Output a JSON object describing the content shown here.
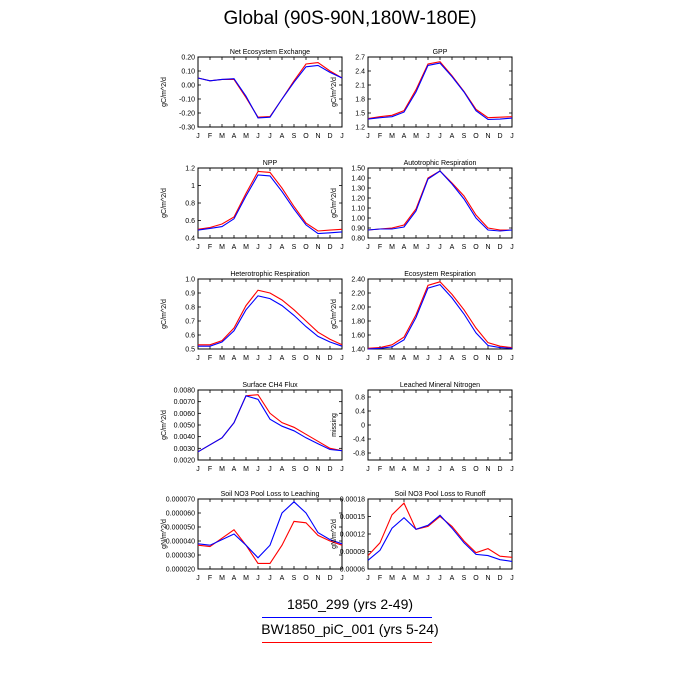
{
  "title": "Global (90S-90N,180W-180E)",
  "legend": {
    "entries": [
      {
        "label": "1850_299 (yrs 2-49)",
        "color": "#0000ff"
      },
      {
        "label": "BW1850_piC_001 (yrs 5-24)",
        "color": "#ff0000"
      }
    ]
  },
  "chart_data": [
    {
      "type": "line",
      "title": "Net Ecosystem Exchange",
      "ylabel": "gC/m^2/d",
      "categories": [
        "J",
        "F",
        "M",
        "A",
        "M",
        "J",
        "J",
        "A",
        "S",
        "O",
        "N",
        "D",
        "J"
      ],
      "ylim": [
        -0.3,
        0.2
      ],
      "yticks": [
        "0.20",
        "0.10",
        "0.00",
        "-0.10",
        "-0.20",
        "-0.30"
      ],
      "series": [
        {
          "color": "#0000ff",
          "values": [
            0.05,
            0.03,
            0.04,
            0.045,
            -0.08,
            -0.235,
            -0.23,
            -0.1,
            0.02,
            0.13,
            0.14,
            0.09,
            0.05
          ]
        },
        {
          "color": "#ff0000",
          "values": [
            0.05,
            0.03,
            0.04,
            0.04,
            -0.09,
            -0.23,
            -0.225,
            -0.1,
            0.03,
            0.15,
            0.16,
            0.1,
            0.05
          ]
        }
      ]
    },
    {
      "type": "line",
      "title": "GPP",
      "ylabel": "gC/m^2/d",
      "categories": [
        "J",
        "F",
        "M",
        "A",
        "M",
        "J",
        "J",
        "A",
        "S",
        "O",
        "N",
        "D",
        "J"
      ],
      "ylim": [
        1.2,
        2.7
      ],
      "yticks": [
        "2.7",
        "2.4",
        "2.1",
        "1.8",
        "1.5",
        "1.2"
      ],
      "series": [
        {
          "color": "#0000ff",
          "values": [
            1.37,
            1.4,
            1.42,
            1.52,
            1.95,
            2.52,
            2.57,
            2.28,
            1.95,
            1.55,
            1.36,
            1.37,
            1.39
          ]
        },
        {
          "color": "#ff0000",
          "values": [
            1.38,
            1.42,
            1.45,
            1.55,
            2.0,
            2.55,
            2.6,
            2.3,
            1.96,
            1.58,
            1.4,
            1.41,
            1.42
          ]
        }
      ]
    },
    {
      "type": "line",
      "title": "NPP",
      "ylabel": "gC/m^2/d",
      "categories": [
        "J",
        "F",
        "M",
        "A",
        "M",
        "J",
        "J",
        "A",
        "S",
        "O",
        "N",
        "D",
        "J"
      ],
      "ylim": [
        0.4,
        1.2
      ],
      "yticks": [
        "1.2",
        "1",
        "0.8",
        "0.6",
        "0.4"
      ],
      "series": [
        {
          "color": "#0000ff",
          "values": [
            0.49,
            0.51,
            0.53,
            0.62,
            0.88,
            1.12,
            1.11,
            0.93,
            0.73,
            0.55,
            0.45,
            0.46,
            0.47
          ]
        },
        {
          "color": "#ff0000",
          "values": [
            0.5,
            0.52,
            0.56,
            0.64,
            0.91,
            1.16,
            1.15,
            0.97,
            0.76,
            0.57,
            0.48,
            0.49,
            0.5
          ]
        }
      ]
    },
    {
      "type": "line",
      "title": "Autotrophic Respiration",
      "ylabel": "gC/m^2/d",
      "categories": [
        "J",
        "F",
        "M",
        "A",
        "M",
        "J",
        "J",
        "A",
        "S",
        "O",
        "N",
        "D",
        "J"
      ],
      "ylim": [
        0.8,
        1.5
      ],
      "yticks": [
        "1.50",
        "1.40",
        "1.30",
        "1.20",
        "1.10",
        "1.00",
        "0.90",
        "0.80"
      ],
      "series": [
        {
          "color": "#0000ff",
          "values": [
            0.88,
            0.89,
            0.89,
            0.91,
            1.07,
            1.39,
            1.47,
            1.34,
            1.19,
            1.0,
            0.88,
            0.87,
            0.88
          ]
        },
        {
          "color": "#ff0000",
          "values": [
            0.88,
            0.89,
            0.9,
            0.93,
            1.09,
            1.4,
            1.47,
            1.35,
            1.22,
            1.03,
            0.9,
            0.88,
            0.88
          ]
        }
      ]
    },
    {
      "type": "line",
      "title": "Heterotrophic Respiration",
      "ylabel": "gC/m^2/d",
      "categories": [
        "J",
        "F",
        "M",
        "A",
        "M",
        "J",
        "J",
        "A",
        "S",
        "O",
        "N",
        "D",
        "J"
      ],
      "ylim": [
        0.5,
        1.0
      ],
      "yticks": [
        "1.0",
        "0.9",
        "0.8",
        "0.7",
        "0.6",
        "0.5"
      ],
      "series": [
        {
          "color": "#0000ff",
          "values": [
            0.52,
            0.52,
            0.55,
            0.63,
            0.78,
            0.88,
            0.86,
            0.81,
            0.74,
            0.66,
            0.59,
            0.55,
            0.52
          ]
        },
        {
          "color": "#ff0000",
          "values": [
            0.53,
            0.53,
            0.56,
            0.65,
            0.81,
            0.92,
            0.9,
            0.85,
            0.78,
            0.7,
            0.62,
            0.57,
            0.53
          ]
        }
      ]
    },
    {
      "type": "line",
      "title": "Ecosystem Respiration",
      "ylabel": "gC/m^2/d",
      "categories": [
        "J",
        "F",
        "M",
        "A",
        "M",
        "J",
        "J",
        "A",
        "S",
        "O",
        "N",
        "D",
        "J"
      ],
      "ylim": [
        1.4,
        2.4
      ],
      "yticks": [
        "2.40",
        "2.20",
        "2.00",
        "1.80",
        "1.60",
        "1.40"
      ],
      "series": [
        {
          "color": "#0000ff",
          "values": [
            1.4,
            1.41,
            1.43,
            1.53,
            1.85,
            2.27,
            2.32,
            2.13,
            1.9,
            1.63,
            1.45,
            1.42,
            1.41
          ]
        },
        {
          "color": "#ff0000",
          "values": [
            1.41,
            1.42,
            1.46,
            1.57,
            1.89,
            2.31,
            2.36,
            2.18,
            1.96,
            1.7,
            1.49,
            1.44,
            1.42
          ]
        }
      ]
    },
    {
      "type": "line",
      "title": "Surface CH4 Flux",
      "ylabel": "gC/m^2/d",
      "categories": [
        "J",
        "F",
        "M",
        "A",
        "M",
        "J",
        "J",
        "A",
        "S",
        "O",
        "N",
        "D",
        "J"
      ],
      "ylim": [
        0.002,
        0.008
      ],
      "yticks": [
        "0.0080",
        "0.0070",
        "0.0060",
        "0.0050",
        "0.0040",
        "0.0030",
        "0.0020"
      ],
      "series": [
        {
          "color": "#0000ff",
          "values": [
            0.0027,
            0.0033,
            0.0039,
            0.0052,
            0.0075,
            0.0072,
            0.0055,
            0.0049,
            0.0045,
            0.0039,
            0.0034,
            0.0029,
            0.0028
          ]
        },
        {
          "color": "#ff0000",
          "values": [
            0.0027,
            0.0033,
            0.0039,
            0.0052,
            0.0075,
            0.0076,
            0.006,
            0.0052,
            0.0048,
            0.0042,
            0.0036,
            0.003,
            0.0028
          ]
        }
      ]
    },
    {
      "type": "line",
      "title": "Leached Mineral Nitrogen",
      "ylabel": "missing",
      "categories": [
        "J",
        "F",
        "M",
        "A",
        "M",
        "J",
        "J",
        "A",
        "S",
        "O",
        "N",
        "D",
        "J"
      ],
      "ylim": [
        -1.0,
        1.0
      ],
      "yticks": [
        "0.8",
        "0.4",
        "0",
        "-0.4",
        "-0.8"
      ],
      "series": []
    },
    {
      "type": "line",
      "title": "Soil NO3 Pool Loss to Leaching",
      "ylabel": "gN/m^2/d",
      "categories": [
        "J",
        "F",
        "M",
        "A",
        "M",
        "J",
        "J",
        "A",
        "S",
        "O",
        "N",
        "D",
        "J"
      ],
      "ylim": [
        2e-05,
        7e-05
      ],
      "yticks": [
        "0.000070",
        "0.000060",
        "0.000050",
        "0.000040",
        "0.000030",
        "0.000020"
      ],
      "series": [
        {
          "color": "#0000ff",
          "values": [
            3.8e-05,
            3.7e-05,
            4.1e-05,
            4.5e-05,
            3.7e-05,
            2.8e-05,
            3.7e-05,
            6e-05,
            6.8e-05,
            6e-05,
            4.6e-05,
            4.1e-05,
            3.8e-05
          ]
        },
        {
          "color": "#ff0000",
          "values": [
            3.7e-05,
            3.6e-05,
            4.2e-05,
            4.8e-05,
            3.7e-05,
            2.4e-05,
            2.4e-05,
            3.7e-05,
            5.4e-05,
            5.3e-05,
            4.4e-05,
            4e-05,
            3.7e-05
          ]
        }
      ]
    },
    {
      "type": "line",
      "title": "Soil NO3 Pool Loss to Runoff",
      "ylabel": "gN/m^2/d",
      "categories": [
        "J",
        "F",
        "M",
        "A",
        "M",
        "J",
        "J",
        "A",
        "S",
        "O",
        "N",
        "D",
        "J"
      ],
      "ylim": [
        6e-05,
        0.00018
      ],
      "yticks": [
        "0.00018",
        "0.00015",
        "0.00012",
        "0.00009",
        "0.00006"
      ],
      "series": [
        {
          "color": "#0000ff",
          "values": [
            7.5e-05,
            9.2e-05,
            0.00013,
            0.000148,
            0.000128,
            0.000135,
            0.000152,
            0.00013,
            0.000105,
            8.5e-05,
            8.3e-05,
            7.6e-05,
            7.3e-05
          ]
        },
        {
          "color": "#ff0000",
          "values": [
            8.3e-05,
            0.000105,
            0.000153,
            0.000173,
            0.000128,
            0.000133,
            0.00015,
            0.000133,
            0.000108,
            8.8e-05,
            9.5e-05,
            8.2e-05,
            8e-05
          ]
        }
      ]
    }
  ]
}
